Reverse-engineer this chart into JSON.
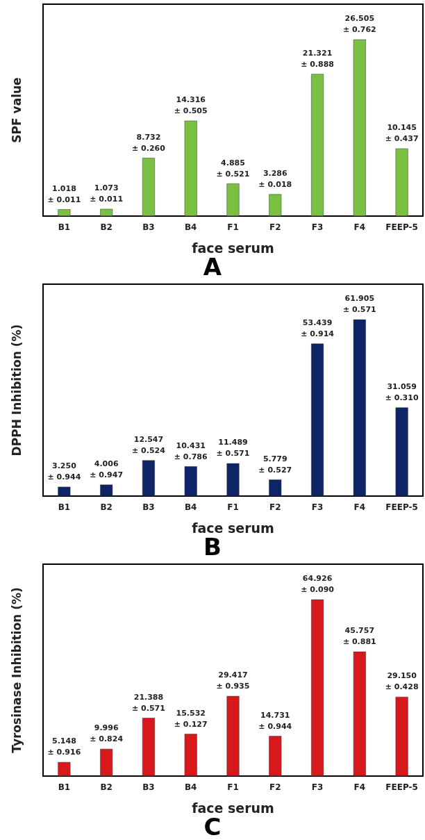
{
  "chart_data": [
    {
      "type": "bar",
      "ylabel": "SPF value",
      "xlabel": "face serum",
      "annotations": [
        "A"
      ],
      "tick_labels": "x",
      "categories": [
        "B1",
        "B2",
        "B3",
        "B4",
        "F1",
        "F2",
        "F3",
        "F4",
        "FEEP-5"
      ],
      "series": [
        {
          "color": "#7ac143",
          "values": [
            1.018,
            1.073,
            8.732,
            14.316,
            4.885,
            3.286,
            21.321,
            26.505,
            10.145
          ],
          "value_labels": [
            "1.018\n± 0.011",
            "1.073\n± 0.011",
            "8.732\n± 0.260",
            "14.316\n± 0.505",
            "4.885\n± 0.521",
            "3.286\n± 0.018",
            "21.321\n± 0.888",
            "26.505\n± 0.762",
            "10.145\n± 0.437"
          ]
        }
      ]
    },
    {
      "type": "bar",
      "ylabel": "DPPH Inhibition (%)",
      "xlabel": "face serum",
      "annotations": [
        "B"
      ],
      "tick_labels": "x",
      "categories": [
        "B1",
        "B2",
        "B3",
        "B4",
        "F1",
        "F2",
        "F3",
        "F4",
        "FEEP-5"
      ],
      "series": [
        {
          "color": "#0d2566",
          "values": [
            3.25,
            4.006,
            12.547,
            10.431,
            11.489,
            5.779,
            53.439,
            61.905,
            31.059
          ],
          "value_labels": [
            "3.250\n± 0.944",
            "4.006\n± 0.947",
            "12.547\n± 0.524",
            "10.431\n± 0.786",
            "11.489\n± 0.571",
            "5.779\n± 0.527",
            "53.439\n± 0.914",
            "61.905\n± 0.571",
            "31.059\n± 0.310"
          ]
        }
      ]
    },
    {
      "type": "bar",
      "ylabel": "Tyrosinase Inhibition (%)",
      "xlabel": "face serum",
      "annotations": [
        "C"
      ],
      "tick_labels": "x",
      "categories": [
        "B1",
        "B2",
        "B3",
        "B4",
        "F1",
        "F2",
        "F3",
        "F4",
        "FEEP-5"
      ],
      "series": [
        {
          "color": "#d7191c",
          "values": [
            5.148,
            9.996,
            21.388,
            15.532,
            29.417,
            14.731,
            64.926,
            45.757,
            29.15
          ],
          "value_labels": [
            "5.148\n± 0.916",
            "9.996\n± 0.824",
            "21.388\n± 0.571",
            "15.532\n± 0.127",
            "29.417\n± 0.935",
            "14.731\n± 0.944",
            "64.926\n± 0.090",
            "45.757\n± 0.881",
            "29.150\n± 0.428"
          ]
        }
      ]
    }
  ]
}
